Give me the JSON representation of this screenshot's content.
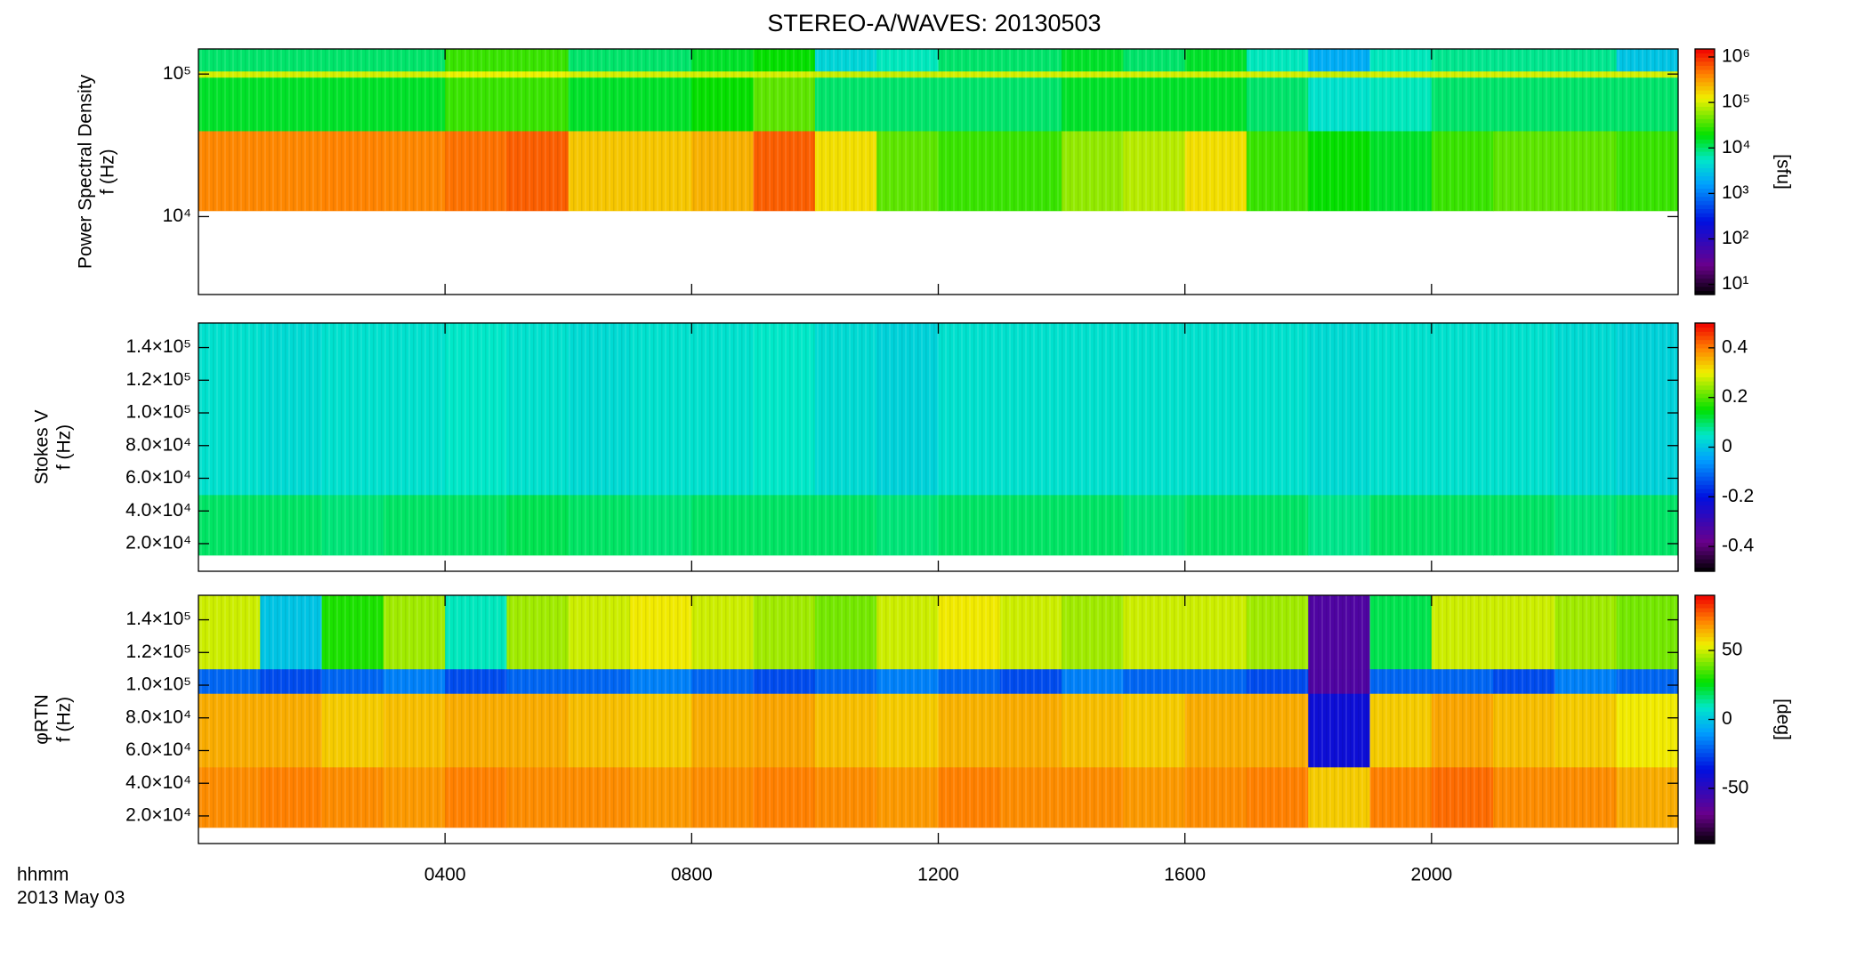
{
  "chart_data": [
    {
      "type": "heatmap",
      "title": "STEREO-A/WAVES: 20130503",
      "ylabel": [
        "Power Spectral Density",
        "f (Hz)"
      ],
      "ylog": true,
      "ylim": [
        2840,
        150000
      ],
      "yticks": [
        {
          "value": 10000,
          "label": "10⁴"
        },
        {
          "value": 100000,
          "label": "10⁵"
        }
      ],
      "x_bins": [
        0,
        1,
        2,
        3,
        4,
        5,
        6,
        7,
        8,
        9,
        10,
        11,
        12,
        13,
        14,
        15,
        16,
        17,
        18,
        19,
        20,
        21,
        22,
        23,
        24
      ],
      "y_bins": [
        11000,
        40000,
        95000,
        105000,
        150000
      ],
      "z": [
        [
          400000,
          400000,
          420000,
          400000,
          500000,
          600000,
          200000,
          200000,
          250000,
          600000,
          150000,
          40000,
          30000,
          30000,
          60000,
          80000,
          150000,
          30000,
          20000,
          15000,
          30000,
          40000,
          40000,
          30000
        ],
        [
          15000,
          15000,
          15000,
          15000,
          30000,
          30000,
          15000,
          15000,
          20000,
          40000,
          10000,
          10000,
          10000,
          10000,
          15000,
          15000,
          15000,
          10000,
          5000,
          6000,
          10000,
          10000,
          10000,
          10000
        ],
        [
          100000,
          100000,
          100000,
          100000,
          120000,
          120000,
          100000,
          100000,
          100000,
          100000,
          90000,
          90000,
          100000,
          100000,
          100000,
          100000,
          100000,
          100000,
          90000,
          100000,
          100000,
          100000,
          100000,
          100000
        ],
        [
          10000,
          10000,
          10000,
          10000,
          30000,
          30000,
          10000,
          10000,
          15000,
          20000,
          4000,
          6000,
          10000,
          10000,
          15000,
          10000,
          15000,
          6000,
          2000,
          6000,
          8000,
          8000,
          8000,
          3000
        ]
      ],
      "zlog": true,
      "zlim": [
        6,
        1500000
      ],
      "zticks": [
        {
          "value": 10,
          "label": "10¹"
        },
        {
          "value": 100,
          "label": "10²"
        },
        {
          "value": 1000,
          "label": "10³"
        },
        {
          "value": 10000,
          "label": "10⁴"
        },
        {
          "value": 100000,
          "label": "10⁵"
        },
        {
          "value": 1000000,
          "label": "10⁶"
        }
      ],
      "zlabel": "[sfu]"
    },
    {
      "type": "heatmap",
      "ylabel": [
        "Stokes V",
        "f (Hz)"
      ],
      "ylog": false,
      "ylim": [
        3100,
        155000
      ],
      "yticks": [
        {
          "value": 20000,
          "label": "2.0×10⁴"
        },
        {
          "value": 40000,
          "label": "4.0×10⁴"
        },
        {
          "value": 60000,
          "label": "6.0×10⁴"
        },
        {
          "value": 80000,
          "label": "8.0×10⁴"
        },
        {
          "value": 100000,
          "label": "1.0×10⁵"
        },
        {
          "value": 120000,
          "label": "1.2×10⁵"
        },
        {
          "value": 140000,
          "label": "1.4×10⁵"
        }
      ],
      "x_bins": [
        0,
        1,
        2,
        3,
        4,
        5,
        6,
        7,
        8,
        9,
        10,
        11,
        12,
        13,
        14,
        15,
        16,
        17,
        18,
        19,
        20,
        21,
        22,
        23,
        24
      ],
      "y_bins": [
        13000,
        50000,
        155000
      ],
      "z": [
        [
          0.1,
          0.1,
          0.09,
          0.1,
          0.1,
          0.11,
          0.1,
          0.09,
          0.1,
          0.1,
          0.1,
          0.09,
          0.1,
          0.1,
          0.1,
          0.09,
          0.1,
          0.1,
          0.08,
          0.1,
          0.1,
          0.1,
          0.09,
          0.1
        ],
        [
          0.04,
          0.03,
          0.04,
          0.04,
          0.05,
          0.04,
          0.03,
          0.04,
          0.04,
          0.05,
          0.03,
          0.02,
          0.04,
          0.04,
          0.04,
          0.04,
          0.04,
          0.04,
          0.03,
          0.04,
          0.04,
          0.04,
          0.03,
          0.02
        ]
      ],
      "zlog": false,
      "zlim": [
        -0.5,
        0.5
      ],
      "zticks": [
        -0.4,
        -0.2,
        0.0,
        0.2,
        0.4
      ]
    },
    {
      "type": "heatmap",
      "ylabel": [
        "φRTN",
        "f (Hz)"
      ],
      "ylog": false,
      "ylim": [
        3100,
        155000
      ],
      "yticks": [
        {
          "value": 20000,
          "label": "2.0×10⁴"
        },
        {
          "value": 40000,
          "label": "4.0×10⁴"
        },
        {
          "value": 60000,
          "label": "6.0×10⁴"
        },
        {
          "value": 80000,
          "label": "8.0×10⁴"
        },
        {
          "value": 100000,
          "label": "1.0×10⁵"
        },
        {
          "value": 120000,
          "label": "1.2×10⁵"
        },
        {
          "value": 140000,
          "label": "1.4×10⁵"
        }
      ],
      "x_bins": [
        0,
        1,
        2,
        3,
        4,
        5,
        6,
        7,
        8,
        9,
        10,
        11,
        12,
        13,
        14,
        15,
        16,
        17,
        18,
        19,
        20,
        21,
        22,
        23,
        24
      ],
      "y_bins": [
        13000,
        50000,
        95000,
        110000,
        155000
      ],
      "z": [
        [
          70,
          72,
          70,
          68,
          72,
          70,
          70,
          68,
          70,
          72,
          70,
          68,
          72,
          70,
          70,
          68,
          70,
          72,
          60,
          72,
          75,
          70,
          70,
          65
        ],
        [
          65,
          65,
          60,
          62,
          65,
          65,
          62,
          60,
          65,
          66,
          62,
          60,
          64,
          65,
          62,
          60,
          65,
          65,
          -40,
          60,
          66,
          62,
          60,
          55
        ],
        [
          -20,
          -25,
          -20,
          -15,
          -25,
          -20,
          -20,
          -15,
          -20,
          -25,
          -20,
          -15,
          -20,
          -25,
          -15,
          -20,
          -20,
          -25,
          -60,
          -20,
          -20,
          -25,
          -15,
          -20
        ],
        [
          50,
          0,
          30,
          45,
          10,
          45,
          50,
          55,
          50,
          45,
          40,
          50,
          55,
          50,
          45,
          50,
          50,
          45,
          -60,
          20,
          50,
          50,
          45,
          40
        ]
      ],
      "zlog": false,
      "zlim": [
        -90,
        90
      ],
      "zticks": [
        -50,
        0,
        50
      ],
      "zlabel": "[deg]",
      "xlim": [
        0,
        24
      ],
      "xticks": [
        {
          "value": 4,
          "label": "0400"
        },
        {
          "value": 8,
          "label": "0800"
        },
        {
          "value": 12,
          "label": "1200"
        },
        {
          "value": 16,
          "label": "1600"
        },
        {
          "value": 20,
          "label": "2000"
        }
      ],
      "xlabel": "hhmm",
      "date_label": "2013 May 03"
    }
  ]
}
